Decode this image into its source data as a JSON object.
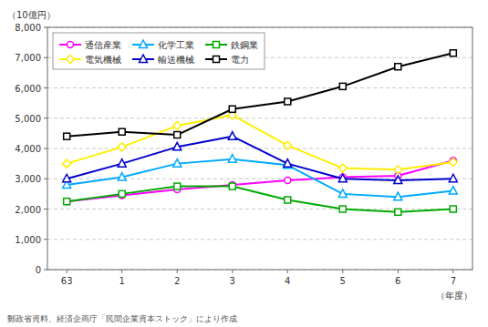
{
  "chart_data": {
    "type": "line",
    "y_label": "（10億円）",
    "x_label": "（年度）",
    "annotations": [
      "郵政省資料、経済企画庁「民間企業資本ストック」により作成"
    ],
    "categories": [
      "63",
      "1",
      "2",
      "3",
      "4",
      "5",
      "6",
      "7"
    ],
    "series": [
      {
        "name": "通信産業",
        "color": "#ff00ff",
        "marker": "circle",
        "values": [
          2250,
          2450,
          2650,
          2800,
          2950,
          3050,
          3100,
          3600
        ]
      },
      {
        "name": "化学工業",
        "color": "#00aaff",
        "marker": "triangle",
        "values": [
          2800,
          3050,
          3500,
          3650,
          3450,
          2500,
          2400,
          2600
        ]
      },
      {
        "name": "鉄鋼業",
        "color": "#00aa00",
        "marker": "square",
        "values": [
          2250,
          2500,
          2750,
          2750,
          2300,
          2000,
          1900,
          2000
        ]
      },
      {
        "name": "電気機械",
        "color": "#ffee00",
        "marker": "diamond",
        "values": [
          3500,
          4050,
          4750,
          5100,
          4100,
          3350,
          3300,
          3550
        ]
      },
      {
        "name": "輸送機械",
        "color": "#0000cc",
        "marker": "triangle",
        "values": [
          3000,
          3500,
          4050,
          4400,
          3500,
          3000,
          2950,
          3000
        ]
      },
      {
        "name": "電力",
        "color": "#000000",
        "marker": "square",
        "values": [
          4400,
          4550,
          4450,
          5300,
          5550,
          6050,
          6700,
          7150
        ]
      }
    ],
    "ylim": [
      0,
      8000
    ],
    "yticks": [
      0,
      {
        "value": 1000,
        "label": "1,000"
      },
      {
        "value": 2000,
        "label": "2,000"
      },
      {
        "value": 3000,
        "label": "3,000"
      },
      {
        "value": 4000,
        "label": "4,000"
      },
      {
        "value": 5000,
        "label": "5,000"
      },
      {
        "value": 6000,
        "label": "6,000"
      },
      {
        "value": 7000,
        "label": "7,000"
      },
      {
        "value": 8000,
        "label": "8,000"
      }
    ],
    "grid": true,
    "legend": "upper left"
  }
}
